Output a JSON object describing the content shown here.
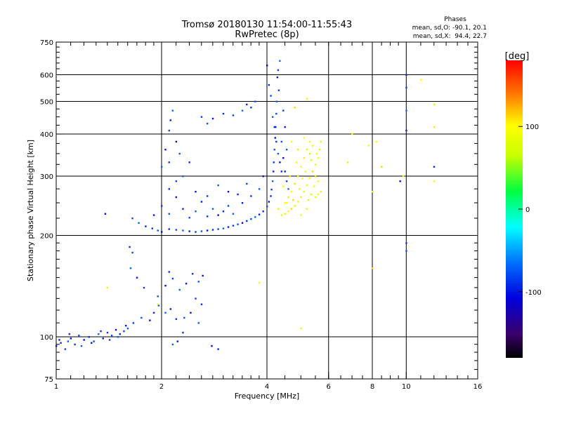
{
  "header": {
    "title_line1": "Tromsø 20180130 11:54:00-11:55:43",
    "title_line2": "RwPretec (8p)",
    "stats_title": "Phases",
    "stats_line1": "mean, sd,O: -90.1, 20.1",
    "stats_line2": "mean, sd,X:  94.4, 22.7"
  },
  "colorbar": {
    "unit_label": "[deg]",
    "range": [
      -180,
      180
    ],
    "ticks": [
      {
        "value": 100,
        "label": "100"
      },
      {
        "value": 0,
        "label": "0"
      },
      {
        "value": -100,
        "label": "-100"
      }
    ]
  },
  "chart_data": {
    "type": "scatter",
    "xlabel": "Frequency [MHz]",
    "ylabel": "Stationary phase Virtual Height [km]",
    "xscale": "log",
    "yscale": "log",
    "xlim": [
      1,
      16
    ],
    "ylim": [
      75,
      750
    ],
    "xticks": [
      {
        "value": 1,
        "label": "1"
      },
      {
        "value": 2,
        "label": "2"
      },
      {
        "value": 4,
        "label": "4"
      },
      {
        "value": 6,
        "label": "6"
      },
      {
        "value": 8,
        "label": "8"
      },
      {
        "value": 10,
        "label": "10"
      },
      {
        "value": 16,
        "label": "16"
      }
    ],
    "xgrid": [
      2,
      4,
      6,
      8,
      10
    ],
    "yticks": [
      {
        "value": 75,
        "label": "75"
      },
      {
        "value": 100,
        "label": "100"
      },
      {
        "value": 200,
        "label": "200"
      },
      {
        "value": 300,
        "label": "300"
      },
      {
        "value": 400,
        "label": "400"
      },
      {
        "value": 500,
        "label": "500"
      },
      {
        "value": 600,
        "label": "600"
      },
      {
        "value": 750,
        "label": "750"
      }
    ],
    "ygrid": [
      100,
      200,
      300,
      400,
      500,
      600
    ],
    "grid": true,
    "color_encoding": "phase [deg], rainbow colormap",
    "series": [
      {
        "name": "O-mode",
        "mean_phase": -90.1,
        "sd_phase": 20.1,
        "points": [
          [
            1.0,
            94
          ],
          [
            1.03,
            96
          ],
          [
            1.06,
            92
          ],
          [
            1.08,
            97
          ],
          [
            1.1,
            99
          ],
          [
            1.13,
            95
          ],
          [
            1.16,
            101
          ],
          [
            1.2,
            98
          ],
          [
            1.24,
            100
          ],
          [
            1.28,
            97
          ],
          [
            1.32,
            102
          ],
          [
            1.36,
            99
          ],
          [
            1.4,
            103
          ],
          [
            1.44,
            101
          ],
          [
            1.48,
            105
          ],
          [
            1.52,
            102
          ],
          [
            1.56,
            104
          ],
          [
            1.6,
            106
          ],
          [
            1.02,
            98
          ],
          [
            1.09,
            102
          ],
          [
            1.18,
            94
          ],
          [
            1.26,
            96
          ],
          [
            1.34,
            104
          ],
          [
            1.42,
            98
          ],
          [
            1.5,
            100
          ],
          [
            1.58,
            108
          ],
          [
            1.66,
            110
          ],
          [
            1.75,
            114
          ],
          [
            1.85,
            112
          ],
          [
            1.9,
            118
          ],
          [
            1.96,
            124
          ],
          [
            2.05,
            118
          ],
          [
            2.12,
            121
          ],
          [
            2.2,
            113
          ],
          [
            2.32,
            114
          ],
          [
            2.42,
            118
          ],
          [
            1.62,
            185
          ],
          [
            1.65,
            178
          ],
          [
            1.63,
            160
          ],
          [
            1.7,
            150
          ],
          [
            1.78,
            140
          ],
          [
            1.95,
            132
          ],
          [
            2.05,
            142
          ],
          [
            2.1,
            156
          ],
          [
            2.15,
            149
          ],
          [
            2.25,
            138
          ],
          [
            2.35,
            144
          ],
          [
            2.45,
            154
          ],
          [
            2.55,
            146
          ],
          [
            2.62,
            152
          ],
          [
            2.6,
            125
          ],
          [
            2.5,
            130
          ],
          [
            2.15,
            95
          ],
          [
            2.22,
            97
          ],
          [
            2.3,
            103
          ],
          [
            2.55,
            110
          ],
          [
            2.78,
            94
          ],
          [
            2.9,
            92
          ],
          [
            1.65,
            225
          ],
          [
            1.72,
            218
          ],
          [
            1.8,
            213
          ],
          [
            1.88,
            210
          ],
          [
            1.95,
            207
          ],
          [
            2.0,
            205
          ],
          [
            2.1,
            209
          ],
          [
            2.2,
            208
          ],
          [
            2.3,
            207
          ],
          [
            2.4,
            206
          ],
          [
            2.5,
            205
          ],
          [
            2.6,
            206
          ],
          [
            2.7,
            207
          ],
          [
            2.8,
            208
          ],
          [
            2.9,
            209
          ],
          [
            3.0,
            210
          ],
          [
            3.1,
            212
          ],
          [
            3.2,
            214
          ],
          [
            3.3,
            216
          ],
          [
            3.4,
            218
          ],
          [
            3.5,
            221
          ],
          [
            3.6,
            224
          ],
          [
            3.7,
            227
          ],
          [
            3.8,
            231
          ],
          [
            3.9,
            236
          ],
          [
            4.0,
            244
          ],
          [
            4.05,
            252
          ],
          [
            4.1,
            262
          ],
          [
            4.12,
            274
          ],
          [
            4.15,
            290
          ],
          [
            4.17,
            310
          ],
          [
            4.18,
            330
          ],
          [
            4.2,
            360
          ],
          [
            4.22,
            390
          ],
          [
            4.23,
            420
          ],
          [
            4.25,
            460
          ],
          [
            4.26,
            500
          ],
          [
            1.9,
            230
          ],
          [
            2.0,
            245
          ],
          [
            2.1,
            232
          ],
          [
            2.2,
            260
          ],
          [
            2.3,
            240
          ],
          [
            2.4,
            226
          ],
          [
            2.5,
            236
          ],
          [
            2.6,
            252
          ],
          [
            2.7,
            228
          ],
          [
            2.8,
            240
          ],
          [
            2.9,
            230
          ],
          [
            3.0,
            236
          ],
          [
            3.1,
            245
          ],
          [
            3.2,
            232
          ],
          [
            3.4,
            250
          ],
          [
            3.6,
            262
          ],
          [
            3.8,
            275
          ],
          [
            3.9,
            300
          ],
          [
            2.1,
            275
          ],
          [
            2.2,
            290
          ],
          [
            2.3,
            300
          ],
          [
            2.5,
            270
          ],
          [
            2.7,
            262
          ],
          [
            2.9,
            282
          ],
          [
            3.1,
            270
          ],
          [
            3.3,
            265
          ],
          [
            3.5,
            285
          ],
          [
            2.0,
            320
          ],
          [
            2.05,
            360
          ],
          [
            2.1,
            330
          ],
          [
            2.25,
            350
          ],
          [
            2.2,
            380
          ],
          [
            2.4,
            330
          ],
          [
            2.1,
            410
          ],
          [
            2.15,
            470
          ],
          [
            2.12,
            440
          ],
          [
            2.6,
            450
          ],
          [
            2.7,
            430
          ],
          [
            2.8,
            445
          ],
          [
            3.0,
            460
          ],
          [
            3.2,
            455
          ],
          [
            3.4,
            470
          ],
          [
            3.5,
            490
          ],
          [
            3.6,
            480
          ],
          [
            3.7,
            500
          ],
          [
            4.0,
            640
          ],
          [
            4.05,
            560
          ],
          [
            4.1,
            520
          ],
          [
            4.15,
            450
          ],
          [
            4.2,
            420
          ],
          [
            4.25,
            380
          ],
          [
            4.3,
            350
          ],
          [
            4.35,
            330
          ],
          [
            4.4,
            310
          ],
          [
            4.3,
            620
          ],
          [
            4.35,
            660
          ],
          [
            4.28,
            590
          ],
          [
            4.32,
            540
          ],
          [
            4.4,
            380
          ],
          [
            4.45,
            340
          ],
          [
            4.5,
            310
          ],
          [
            4.55,
            290
          ],
          [
            4.6,
            275
          ],
          [
            4.5,
            420
          ],
          [
            4.45,
            470
          ],
          [
            4.55,
            360
          ],
          [
            1.38,
            232
          ],
          [
            10.0,
            600
          ],
          [
            10.0,
            550
          ],
          [
            10.0,
            470
          ],
          [
            10.0,
            410
          ],
          [
            10.0,
            190
          ],
          [
            10.0,
            180
          ],
          [
            9.6,
            290
          ],
          [
            12.0,
            320
          ]
        ]
      },
      {
        "name": "X-mode",
        "mean_phase": 94.4,
        "sd_phase": 22.7,
        "points": [
          [
            4.4,
            230
          ],
          [
            4.5,
            232
          ],
          [
            4.6,
            236
          ],
          [
            4.7,
            240
          ],
          [
            4.8,
            245
          ],
          [
            4.9,
            252
          ],
          [
            5.0,
            260
          ],
          [
            5.1,
            270
          ],
          [
            5.2,
            282
          ],
          [
            5.3,
            296
          ],
          [
            5.4,
            310
          ],
          [
            5.5,
            325
          ],
          [
            5.6,
            340
          ],
          [
            5.65,
            360
          ],
          [
            5.7,
            380
          ],
          [
            4.6,
            260
          ],
          [
            4.7,
            270
          ],
          [
            4.8,
            285
          ],
          [
            4.9,
            300
          ],
          [
            5.0,
            320
          ],
          [
            5.1,
            340
          ],
          [
            5.2,
            360
          ],
          [
            5.3,
            380
          ],
          [
            5.4,
            370
          ],
          [
            5.5,
            300
          ],
          [
            5.6,
            290
          ],
          [
            5.45,
            280
          ],
          [
            5.35,
            265
          ],
          [
            5.25,
            255
          ],
          [
            4.3,
            240
          ],
          [
            4.55,
            250
          ],
          [
            4.75,
            255
          ],
          [
            4.95,
            275
          ],
          [
            5.05,
            295
          ],
          [
            5.15,
            310
          ],
          [
            5.35,
            335
          ],
          [
            5.55,
            350
          ],
          [
            4.85,
            330
          ],
          [
            4.65,
            300
          ],
          [
            4.45,
            280
          ],
          [
            5.0,
            230
          ],
          [
            5.2,
            240
          ],
          [
            4.9,
            360
          ],
          [
            4.7,
            380
          ],
          [
            5.1,
            390
          ],
          [
            5.3,
            350
          ],
          [
            5.5,
            260
          ],
          [
            5.6,
            265
          ],
          [
            5.7,
            270
          ],
          [
            6.8,
            330
          ],
          [
            7.8,
            370
          ],
          [
            8.2,
            380
          ],
          [
            8.5,
            320
          ],
          [
            8.0,
            270
          ],
          [
            7.0,
            400
          ],
          [
            12.0,
            420
          ],
          [
            12.0,
            490
          ],
          [
            12.0,
            290
          ],
          [
            11.0,
            580
          ],
          [
            8.0,
            160
          ],
          [
            9.8,
            300
          ],
          [
            5.0,
            106
          ],
          [
            1.4,
            140
          ],
          [
            1.95,
            125
          ],
          [
            3.8,
            145
          ],
          [
            4.5,
            250
          ],
          [
            4.8,
            480
          ],
          [
            5.2,
            510
          ]
        ]
      }
    ]
  }
}
